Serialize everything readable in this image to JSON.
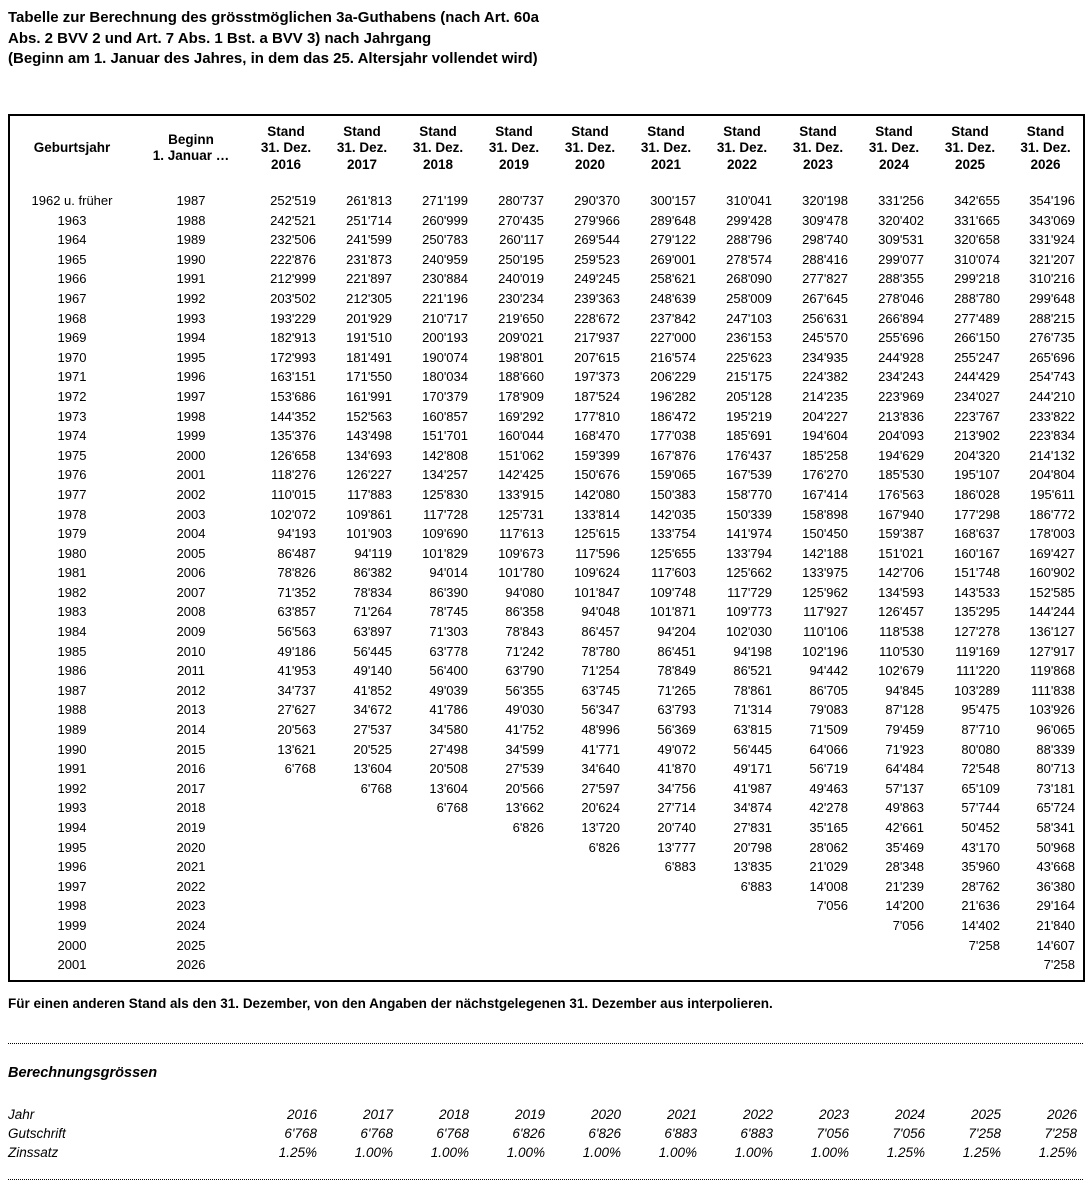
{
  "title": {
    "line1": "Tabelle zur Berechnung des grösstmöglichen 3a-Guthabens (nach Art. 60a",
    "line2": "Abs. 2 BVV 2 und Art. 7 Abs. 1 Bst. a BVV 3) nach Jahrgang",
    "line3": "(Beginn am 1. Januar des Jahres, in dem das 25. Altersjahr vollendet wird)"
  },
  "table": {
    "headers": {
      "geburtsjahr": "Geburtsjahr",
      "beginn": "Beginn\n1. Januar …",
      "stand_prefix": "Stand\n31. Dez."
    },
    "year_columns": [
      "2016",
      "2017",
      "2018",
      "2019",
      "2020",
      "2021",
      "2022",
      "2023",
      "2024",
      "2025",
      "2026"
    ],
    "rows": [
      {
        "geburtsjahr": "1962 u. früher",
        "beginn": "1987",
        "values": [
          "252'519",
          "261'813",
          "271'199",
          "280'737",
          "290'370",
          "300'157",
          "310'041",
          "320'198",
          "331'256",
          "342'655",
          "354'196"
        ]
      },
      {
        "geburtsjahr": "1963",
        "beginn": "1988",
        "values": [
          "242'521",
          "251'714",
          "260'999",
          "270'435",
          "279'966",
          "289'648",
          "299'428",
          "309'478",
          "320'402",
          "331'665",
          "343'069"
        ]
      },
      {
        "geburtsjahr": "1964",
        "beginn": "1989",
        "values": [
          "232'506",
          "241'599",
          "250'783",
          "260'117",
          "269'544",
          "279'122",
          "288'796",
          "298'740",
          "309'531",
          "320'658",
          "331'924"
        ]
      },
      {
        "geburtsjahr": "1965",
        "beginn": "1990",
        "values": [
          "222'876",
          "231'873",
          "240'959",
          "250'195",
          "259'523",
          "269'001",
          "278'574",
          "288'416",
          "299'077",
          "310'074",
          "321'207"
        ]
      },
      {
        "geburtsjahr": "1966",
        "beginn": "1991",
        "values": [
          "212'999",
          "221'897",
          "230'884",
          "240'019",
          "249'245",
          "258'621",
          "268'090",
          "277'827",
          "288'355",
          "299'218",
          "310'216"
        ]
      },
      {
        "geburtsjahr": "1967",
        "beginn": "1992",
        "values": [
          "203'502",
          "212'305",
          "221'196",
          "230'234",
          "239'363",
          "248'639",
          "258'009",
          "267'645",
          "278'046",
          "288'780",
          "299'648"
        ]
      },
      {
        "geburtsjahr": "1968",
        "beginn": "1993",
        "values": [
          "193'229",
          "201'929",
          "210'717",
          "219'650",
          "228'672",
          "237'842",
          "247'103",
          "256'631",
          "266'894",
          "277'489",
          "288'215"
        ]
      },
      {
        "geburtsjahr": "1969",
        "beginn": "1994",
        "values": [
          "182'913",
          "191'510",
          "200'193",
          "209'021",
          "217'937",
          "227'000",
          "236'153",
          "245'570",
          "255'696",
          "266'150",
          "276'735"
        ]
      },
      {
        "geburtsjahr": "1970",
        "beginn": "1995",
        "values": [
          "172'993",
          "181'491",
          "190'074",
          "198'801",
          "207'615",
          "216'574",
          "225'623",
          "234'935",
          "244'928",
          "255'247",
          "265'696"
        ]
      },
      {
        "geburtsjahr": "1971",
        "beginn": "1996",
        "values": [
          "163'151",
          "171'550",
          "180'034",
          "188'660",
          "197'373",
          "206'229",
          "215'175",
          "224'382",
          "234'243",
          "244'429",
          "254'743"
        ]
      },
      {
        "geburtsjahr": "1972",
        "beginn": "1997",
        "values": [
          "153'686",
          "161'991",
          "170'379",
          "178'909",
          "187'524",
          "196'282",
          "205'128",
          "214'235",
          "223'969",
          "234'027",
          "244'210"
        ]
      },
      {
        "geburtsjahr": "1973",
        "beginn": "1998",
        "values": [
          "144'352",
          "152'563",
          "160'857",
          "169'292",
          "177'810",
          "186'472",
          "195'219",
          "204'227",
          "213'836",
          "223'767",
          "233'822"
        ]
      },
      {
        "geburtsjahr": "1974",
        "beginn": "1999",
        "values": [
          "135'376",
          "143'498",
          "151'701",
          "160'044",
          "168'470",
          "177'038",
          "185'691",
          "194'604",
          "204'093",
          "213'902",
          "223'834"
        ]
      },
      {
        "geburtsjahr": "1975",
        "beginn": "2000",
        "values": [
          "126'658",
          "134'693",
          "142'808",
          "151'062",
          "159'399",
          "167'876",
          "176'437",
          "185'258",
          "194'629",
          "204'320",
          "214'132"
        ]
      },
      {
        "geburtsjahr": "1976",
        "beginn": "2001",
        "values": [
          "118'276",
          "126'227",
          "134'257",
          "142'425",
          "150'676",
          "159'065",
          "167'539",
          "176'270",
          "185'530",
          "195'107",
          "204'804"
        ]
      },
      {
        "geburtsjahr": "1977",
        "beginn": "2002",
        "values": [
          "110'015",
          "117'883",
          "125'830",
          "133'915",
          "142'080",
          "150'383",
          "158'770",
          "167'414",
          "176'563",
          "186'028",
          "195'611"
        ]
      },
      {
        "geburtsjahr": "1978",
        "beginn": "2003",
        "values": [
          "102'072",
          "109'861",
          "117'728",
          "125'731",
          "133'814",
          "142'035",
          "150'339",
          "158'898",
          "167'940",
          "177'298",
          "186'772"
        ]
      },
      {
        "geburtsjahr": "1979",
        "beginn": "2004",
        "values": [
          "94'193",
          "101'903",
          "109'690",
          "117'613",
          "125'615",
          "133'754",
          "141'974",
          "150'450",
          "159'387",
          "168'637",
          "178'003"
        ]
      },
      {
        "geburtsjahr": "1980",
        "beginn": "2005",
        "values": [
          "86'487",
          "94'119",
          "101'829",
          "109'673",
          "117'596",
          "125'655",
          "133'794",
          "142'188",
          "151'021",
          "160'167",
          "169'427"
        ]
      },
      {
        "geburtsjahr": "1981",
        "beginn": "2006",
        "values": [
          "78'826",
          "86'382",
          "94'014",
          "101'780",
          "109'624",
          "117'603",
          "125'662",
          "133'975",
          "142'706",
          "151'748",
          "160'902"
        ]
      },
      {
        "geburtsjahr": "1982",
        "beginn": "2007",
        "values": [
          "71'352",
          "78'834",
          "86'390",
          "94'080",
          "101'847",
          "109'748",
          "117'729",
          "125'962",
          "134'593",
          "143'533",
          "152'585"
        ]
      },
      {
        "geburtsjahr": "1983",
        "beginn": "2008",
        "values": [
          "63'857",
          "71'264",
          "78'745",
          "86'358",
          "94'048",
          "101'871",
          "109'773",
          "117'927",
          "126'457",
          "135'295",
          "144'244"
        ]
      },
      {
        "geburtsjahr": "1984",
        "beginn": "2009",
        "values": [
          "56'563",
          "63'897",
          "71'303",
          "78'843",
          "86'457",
          "94'204",
          "102'030",
          "110'106",
          "118'538",
          "127'278",
          "136'127"
        ]
      },
      {
        "geburtsjahr": "1985",
        "beginn": "2010",
        "values": [
          "49'186",
          "56'445",
          "63'778",
          "71'242",
          "78'780",
          "86'451",
          "94'198",
          "102'196",
          "110'530",
          "119'169",
          "127'917"
        ]
      },
      {
        "geburtsjahr": "1986",
        "beginn": "2011",
        "values": [
          "41'953",
          "49'140",
          "56'400",
          "63'790",
          "71'254",
          "78'849",
          "86'521",
          "94'442",
          "102'679",
          "111'220",
          "119'868"
        ]
      },
      {
        "geburtsjahr": "1987",
        "beginn": "2012",
        "values": [
          "34'737",
          "41'852",
          "49'039",
          "56'355",
          "63'745",
          "71'265",
          "78'861",
          "86'705",
          "94'845",
          "103'289",
          "111'838"
        ]
      },
      {
        "geburtsjahr": "1988",
        "beginn": "2013",
        "values": [
          "27'627",
          "34'672",
          "41'786",
          "49'030",
          "56'347",
          "63'793",
          "71'314",
          "79'083",
          "87'128",
          "95'475",
          "103'926"
        ]
      },
      {
        "geburtsjahr": "1989",
        "beginn": "2014",
        "values": [
          "20'563",
          "27'537",
          "34'580",
          "41'752",
          "48'996",
          "56'369",
          "63'815",
          "71'509",
          "79'459",
          "87'710",
          "96'065"
        ]
      },
      {
        "geburtsjahr": "1990",
        "beginn": "2015",
        "values": [
          "13'621",
          "20'525",
          "27'498",
          "34'599",
          "41'771",
          "49'072",
          "56'445",
          "64'066",
          "71'923",
          "80'080",
          "88'339"
        ]
      },
      {
        "geburtsjahr": "1991",
        "beginn": "2016",
        "values": [
          "6'768",
          "13'604",
          "20'508",
          "27'539",
          "34'640",
          "41'870",
          "49'171",
          "56'719",
          "64'484",
          "72'548",
          "80'713"
        ]
      },
      {
        "geburtsjahr": "1992",
        "beginn": "2017",
        "values": [
          "",
          "6'768",
          "13'604",
          "20'566",
          "27'597",
          "34'756",
          "41'987",
          "49'463",
          "57'137",
          "65'109",
          "73'181"
        ]
      },
      {
        "geburtsjahr": "1993",
        "beginn": "2018",
        "values": [
          "",
          "",
          "6'768",
          "13'662",
          "20'624",
          "27'714",
          "34'874",
          "42'278",
          "49'863",
          "57'744",
          "65'724"
        ]
      },
      {
        "geburtsjahr": "1994",
        "beginn": "2019",
        "values": [
          "",
          "",
          "",
          "6'826",
          "13'720",
          "20'740",
          "27'831",
          "35'165",
          "42'661",
          "50'452",
          "58'341"
        ]
      },
      {
        "geburtsjahr": "1995",
        "beginn": "2020",
        "values": [
          "",
          "",
          "",
          "",
          "6'826",
          "13'777",
          "20'798",
          "28'062",
          "35'469",
          "43'170",
          "50'968"
        ]
      },
      {
        "geburtsjahr": "1996",
        "beginn": "2021",
        "values": [
          "",
          "",
          "",
          "",
          "",
          "6'883",
          "13'835",
          "21'029",
          "28'348",
          "35'960",
          "43'668"
        ]
      },
      {
        "geburtsjahr": "1997",
        "beginn": "2022",
        "values": [
          "",
          "",
          "",
          "",
          "",
          "",
          "6'883",
          "14'008",
          "21'239",
          "28'762",
          "36'380"
        ]
      },
      {
        "geburtsjahr": "1998",
        "beginn": "2023",
        "values": [
          "",
          "",
          "",
          "",
          "",
          "",
          "",
          "7'056",
          "14'200",
          "21'636",
          "29'164"
        ]
      },
      {
        "geburtsjahr": "1999",
        "beginn": "2024",
        "values": [
          "",
          "",
          "",
          "",
          "",
          "",
          "",
          "",
          "7'056",
          "14'402",
          "21'840"
        ]
      },
      {
        "geburtsjahr": "2000",
        "beginn": "2025",
        "values": [
          "",
          "",
          "",
          "",
          "",
          "",
          "",
          "",
          "",
          "7'258",
          "14'607"
        ]
      },
      {
        "geburtsjahr": "2001",
        "beginn": "2026",
        "values": [
          "",
          "",
          "",
          "",
          "",
          "",
          "",
          "",
          "",
          "",
          "7'258"
        ]
      }
    ]
  },
  "footnote": "Für einen anderen Stand als den 31. Dezember, von den Angaben der nächstgelegenen 31. Dezember aus interpolieren.",
  "berechnungsgroessen": {
    "title": "Berechnungsgrössen",
    "rows": [
      {
        "label": "Jahr",
        "values": [
          "2016",
          "2017",
          "2018",
          "2019",
          "2020",
          "2021",
          "2022",
          "2023",
          "2024",
          "2025",
          "2026"
        ]
      },
      {
        "label": "Gutschrift",
        "values": [
          "6'768",
          "6'768",
          "6'768",
          "6'826",
          "6'826",
          "6'883",
          "6'883",
          "7'056",
          "7'056",
          "7'258",
          "7'258"
        ]
      },
      {
        "label": "Zinssatz",
        "values": [
          "1.25%",
          "1.00%",
          "1.00%",
          "1.00%",
          "1.00%",
          "1.00%",
          "1.00%",
          "1.00%",
          "1.25%",
          "1.25%",
          "1.25%"
        ]
      }
    ]
  },
  "colors": {
    "text": "#000000",
    "background": "#ffffff",
    "table_border": "#000000"
  }
}
